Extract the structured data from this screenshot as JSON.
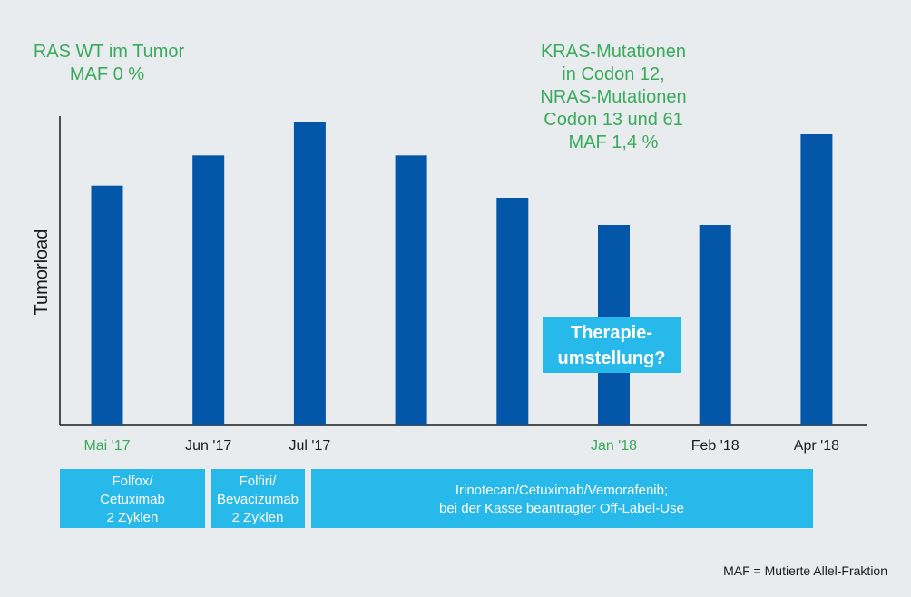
{
  "chart_data": {
    "type": "bar",
    "ylabel": "Tumorload",
    "categories": [
      "Mai '17",
      "Jun '17",
      "Jul '17",
      "",
      "",
      "Jan '18",
      "Feb '18",
      "Apr '18"
    ],
    "highlighted_categories": [
      "Mai '17",
      "Jan '18"
    ],
    "values": [
      0.79,
      0.89,
      1.0,
      0.89,
      0.75,
      0.66,
      0.66,
      0.96
    ],
    "ylim": [
      0,
      1.02
    ],
    "bar_color": "#0457a8",
    "annotations": {
      "left": [
        "RAS WT im Tumor",
        "MAF 0 %"
      ],
      "right": [
        "KRAS-Mutationen",
        "in Codon 12,",
        "NRAS-Mutationen",
        "Codon 13 und 61",
        "MAF 1,4 %"
      ],
      "callout": [
        "Therapie-",
        "umstellung?"
      ]
    },
    "therapies": [
      {
        "lines": [
          "Folfox/",
          "Cetuximab",
          "2 Zyklen"
        ]
      },
      {
        "lines": [
          "Folfiri/",
          "Bevacizumab",
          "2 Zyklen"
        ]
      },
      {
        "lines": [
          "Irinotecan/Cetuximab/Vemorafenib;",
          "bei der Kasse beantragter Off-Label-Use"
        ]
      }
    ],
    "footnote": "MAF = Mutierte Allel-Fraktion"
  },
  "colors": {
    "bar": "#0457a8",
    "accent_green": "#3aaa5c",
    "callout": "#27b9ea",
    "background": "#e8ecee"
  }
}
